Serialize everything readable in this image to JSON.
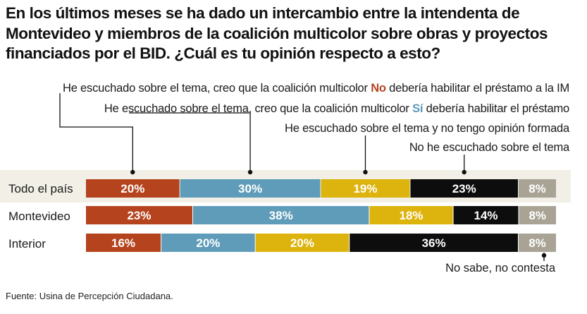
{
  "title": "En los últimos meses se ha dado un intercambio entre la intendenta de Montevideo y miembros de la coalición multicolor sobre obras y proyectos financiados por el BID. ¿Cuál es tu opinión respecto a esto?",
  "legend": {
    "no_pre": "He escuchado sobre el tema, creo que la coalición multicolor ",
    "no_key": "No",
    "no_post": " debería habilitar el préstamo a la IM",
    "si_pre": "He escuchado sobre el tema, creo que la coalición multicolor ",
    "si_key": "Sí",
    "si_post": " debería habilitar el préstamo",
    "no_opinion": "He escuchado sobre el tema y no tengo opinión formada",
    "not_heard": "No he escuchado sobre el tema"
  },
  "nsnc_label": "No sabe, no contesta",
  "source": "Fuente: Usina de Percepción Ciudadana.",
  "chart_data": {
    "type": "bar",
    "stacked": true,
    "orientation": "horizontal",
    "percent": true,
    "categories": [
      "Todo el país",
      "Montevideo",
      "Interior"
    ],
    "series": [
      {
        "name": "He escuchado sobre el tema, creo que la coalición multicolor No debería habilitar el préstamo a la IM",
        "color": "#b5431e",
        "values": [
          20,
          23,
          16
        ]
      },
      {
        "name": "He escuchado sobre el tema, creo que la coalición multicolor Sí debería habilitar el préstamo",
        "color": "#5f9cb9",
        "values": [
          30,
          38,
          20
        ]
      },
      {
        "name": "He escuchado sobre el tema y no tengo opinión formada",
        "color": "#ddb30d",
        "values": [
          19,
          18,
          20
        ]
      },
      {
        "name": "No he escuchado sobre el tema",
        "color": "#0d0d0d",
        "values": [
          23,
          14,
          36
        ]
      },
      {
        "name": "No sabe, no contesta",
        "color": "#a8a395",
        "values": [
          8,
          8,
          8
        ]
      }
    ],
    "value_suffix": "%"
  }
}
